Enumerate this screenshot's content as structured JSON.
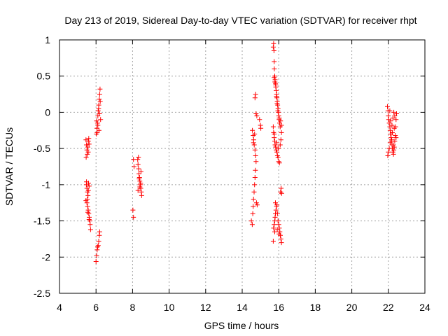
{
  "chart_data": {
    "type": "scatter",
    "title": "Day 213 of 2019, Sidereal Day-to-day VTEC variation (SDTVAR) for receiver rhpt",
    "xlabel": "GPS time / hours",
    "ylabel": "SDTVAR / TECUs",
    "xlim": [
      4,
      24
    ],
    "ylim": [
      -2.5,
      1
    ],
    "xticks": [
      4,
      6,
      8,
      10,
      12,
      14,
      16,
      18,
      20,
      22,
      24
    ],
    "xtick_labels": [
      "4",
      "6",
      "8",
      "10",
      "12",
      "14",
      "16",
      "18",
      "20",
      "22",
      "24"
    ],
    "yticks": [
      -2.5,
      -2,
      -1.5,
      -1,
      -0.5,
      0,
      0.5,
      1
    ],
    "ytick_labels": [
      "-2.5",
      "-2",
      "-1.5",
      "-1",
      "-0.5",
      "0",
      "0.5",
      "1"
    ],
    "grid": true,
    "marker": "+",
    "color": "#ff0000",
    "series": [
      {
        "name": "SDTVAR",
        "points": [
          [
            5.45,
            -0.38
          ],
          [
            5.48,
            -0.45
          ],
          [
            5.5,
            -0.52
          ],
          [
            5.52,
            -0.58
          ],
          [
            5.46,
            -0.62
          ],
          [
            5.55,
            -0.48
          ],
          [
            5.58,
            -0.4
          ],
          [
            5.6,
            -0.36
          ],
          [
            5.62,
            -0.44
          ],
          [
            5.57,
            -0.55
          ],
          [
            5.47,
            -1.0
          ],
          [
            5.5,
            -1.05
          ],
          [
            5.53,
            -1.1
          ],
          [
            5.48,
            -0.96
          ],
          [
            5.56,
            -1.15
          ],
          [
            5.59,
            -0.98
          ],
          [
            5.62,
            -1.02
          ],
          [
            5.52,
            -1.2
          ],
          [
            5.45,
            -1.22
          ],
          [
            5.58,
            -1.08
          ],
          [
            5.5,
            -1.25
          ],
          [
            5.54,
            -1.3
          ],
          [
            5.57,
            -1.35
          ],
          [
            5.6,
            -1.4
          ],
          [
            5.63,
            -1.45
          ],
          [
            5.66,
            -1.5
          ],
          [
            5.68,
            -1.55
          ],
          [
            5.7,
            -1.62
          ],
          [
            5.55,
            -1.38
          ],
          [
            5.62,
            -1.48
          ],
          [
            6.02,
            -0.3
          ],
          [
            6.05,
            -0.22
          ],
          [
            6.08,
            -0.15
          ],
          [
            6.1,
            -0.05
          ],
          [
            6.12,
            0.02
          ],
          [
            6.15,
            0.1
          ],
          [
            6.18,
            0.18
          ],
          [
            6.2,
            0.25
          ],
          [
            6.22,
            0.32
          ],
          [
            6.25,
            -0.1
          ],
          [
            6.06,
            -0.28
          ],
          [
            6.14,
            0.05
          ],
          [
            6.1,
            -0.18
          ],
          [
            6.16,
            -0.25
          ],
          [
            6.03,
            -0.12
          ],
          [
            6.19,
            -0.02
          ],
          [
            6.23,
            0.15
          ],
          [
            6.0,
            -2.06
          ],
          [
            6.03,
            -1.98
          ],
          [
            6.06,
            -1.9
          ],
          [
            6.09,
            -1.86
          ],
          [
            6.12,
            -1.84
          ],
          [
            6.15,
            -1.78
          ],
          [
            6.18,
            -1.7
          ],
          [
            6.2,
            -1.65
          ],
          [
            8.05,
            -0.65
          ],
          [
            8.08,
            -0.75
          ],
          [
            8.02,
            -1.35
          ],
          [
            8.05,
            -1.45
          ],
          [
            8.28,
            -0.65
          ],
          [
            8.3,
            -0.72
          ],
          [
            8.33,
            -0.78
          ],
          [
            8.35,
            -0.85
          ],
          [
            8.38,
            -0.9
          ],
          [
            8.4,
            -0.95
          ],
          [
            8.42,
            -1.0
          ],
          [
            8.45,
            -1.05
          ],
          [
            8.48,
            -1.1
          ],
          [
            8.5,
            -1.15
          ],
          [
            8.32,
            -0.62
          ],
          [
            8.36,
            -0.92
          ],
          [
            8.4,
            -1.03
          ],
          [
            8.44,
            -0.98
          ],
          [
            8.46,
            -0.82
          ],
          [
            8.3,
            -1.08
          ],
          [
            14.5,
            -1.5
          ],
          [
            14.55,
            -1.55
          ],
          [
            14.58,
            -1.4
          ],
          [
            14.6,
            -1.3
          ],
          [
            14.62,
            -1.2
          ],
          [
            14.65,
            -1.1
          ],
          [
            14.68,
            -1.0
          ],
          [
            14.7,
            -0.9
          ],
          [
            14.72,
            -0.8
          ],
          [
            14.56,
            -0.25
          ],
          [
            14.6,
            -0.32
          ],
          [
            14.63,
            -0.38
          ],
          [
            14.66,
            -0.45
          ],
          [
            14.7,
            -0.52
          ],
          [
            14.73,
            -0.6
          ],
          [
            14.76,
            -0.68
          ],
          [
            14.62,
            -0.42
          ],
          [
            14.68,
            -0.3
          ],
          [
            14.7,
            0.2
          ],
          [
            14.73,
            0.25
          ],
          [
            14.76,
            -0.02
          ],
          [
            14.8,
            -0.05
          ],
          [
            14.78,
            -1.25
          ],
          [
            14.82,
            -1.28
          ],
          [
            14.95,
            -0.1
          ],
          [
            15.0,
            -0.18
          ],
          [
            15.02,
            -0.22
          ],
          [
            15.7,
            0.9
          ],
          [
            15.72,
            0.95
          ],
          [
            15.74,
            0.85
          ],
          [
            15.75,
            0.7
          ],
          [
            15.76,
            0.6
          ],
          [
            15.78,
            0.5
          ],
          [
            15.8,
            0.45
          ],
          [
            15.82,
            0.4
          ],
          [
            15.84,
            0.35
          ],
          [
            15.86,
            0.3
          ],
          [
            15.88,
            0.25
          ],
          [
            15.9,
            0.2
          ],
          [
            15.92,
            0.15
          ],
          [
            15.94,
            0.1
          ],
          [
            15.96,
            0.05
          ],
          [
            15.98,
            0.0
          ],
          [
            16.0,
            -0.05
          ],
          [
            16.02,
            -0.1
          ],
          [
            16.05,
            -0.15
          ],
          [
            16.08,
            -0.2
          ],
          [
            15.75,
            0.48
          ],
          [
            15.79,
            0.42
          ],
          [
            15.83,
            0.38
          ],
          [
            15.87,
            0.22
          ],
          [
            15.91,
            0.12
          ],
          [
            15.95,
            0.02
          ],
          [
            16.03,
            -0.08
          ],
          [
            16.1,
            -0.12
          ],
          [
            16.15,
            -0.18
          ],
          [
            15.7,
            -0.2
          ],
          [
            15.72,
            -0.28
          ],
          [
            15.75,
            -0.35
          ],
          [
            15.78,
            -0.4
          ],
          [
            15.8,
            -0.45
          ],
          [
            15.83,
            -0.48
          ],
          [
            15.86,
            -0.52
          ],
          [
            15.9,
            -0.55
          ],
          [
            15.93,
            -0.6
          ],
          [
            15.96,
            -0.62
          ],
          [
            16.0,
            -0.68
          ],
          [
            16.04,
            -0.7
          ],
          [
            16.08,
            -0.45
          ],
          [
            16.12,
            -0.38
          ],
          [
            16.15,
            -0.28
          ],
          [
            15.76,
            -0.3
          ],
          [
            15.88,
            -0.42
          ],
          [
            15.98,
            -0.5
          ],
          [
            15.72,
            -1.6
          ],
          [
            15.75,
            -1.55
          ],
          [
            15.78,
            -1.5
          ],
          [
            15.8,
            -1.45
          ],
          [
            15.82,
            -1.4
          ],
          [
            15.85,
            -1.35
          ],
          [
            15.88,
            -1.3
          ],
          [
            15.9,
            -1.28
          ],
          [
            15.93,
            -1.4
          ],
          [
            15.96,
            -1.5
          ],
          [
            16.0,
            -1.55
          ],
          [
            16.03,
            -1.6
          ],
          [
            16.06,
            -1.65
          ],
          [
            16.09,
            -1.7
          ],
          [
            16.12,
            -1.75
          ],
          [
            16.15,
            -1.8
          ],
          [
            15.7,
            -1.78
          ],
          [
            15.78,
            -1.65
          ],
          [
            15.92,
            -1.62
          ],
          [
            16.02,
            -1.68
          ],
          [
            16.1,
            -1.1
          ],
          [
            16.13,
            -1.05
          ],
          [
            16.16,
            -1.12
          ],
          [
            15.82,
            -1.25
          ],
          [
            21.95,
            0.08
          ],
          [
            21.98,
            0.02
          ],
          [
            22.0,
            -0.05
          ],
          [
            22.02,
            -0.1
          ],
          [
            22.05,
            -0.15
          ],
          [
            22.08,
            -0.2
          ],
          [
            22.1,
            -0.25
          ],
          [
            22.12,
            -0.3
          ],
          [
            22.15,
            -0.35
          ],
          [
            22.18,
            -0.4
          ],
          [
            22.2,
            -0.45
          ],
          [
            22.22,
            -0.5
          ],
          [
            22.25,
            -0.55
          ],
          [
            22.28,
            -0.58
          ],
          [
            22.3,
            -0.52
          ],
          [
            22.32,
            -0.48
          ],
          [
            22.35,
            -0.4
          ],
          [
            22.38,
            -0.32
          ],
          [
            22.4,
            -0.2
          ],
          [
            22.42,
            -0.1
          ],
          [
            22.45,
            -0.02
          ],
          [
            21.97,
            -0.6
          ],
          [
            22.0,
            -0.55
          ],
          [
            22.05,
            -0.5
          ],
          [
            22.1,
            -0.42
          ],
          [
            22.15,
            -0.3
          ],
          [
            22.2,
            -0.18
          ],
          [
            22.25,
            -0.08
          ],
          [
            22.3,
            0.0
          ],
          [
            22.35,
            -0.05
          ],
          [
            22.12,
            -0.12
          ],
          [
            22.22,
            -0.28
          ],
          [
            22.32,
            -0.22
          ],
          [
            22.42,
            -0.35
          ],
          [
            22.08,
            0.02
          ],
          [
            22.18,
            -0.38
          ],
          [
            22.28,
            -0.45
          ]
        ]
      }
    ]
  }
}
